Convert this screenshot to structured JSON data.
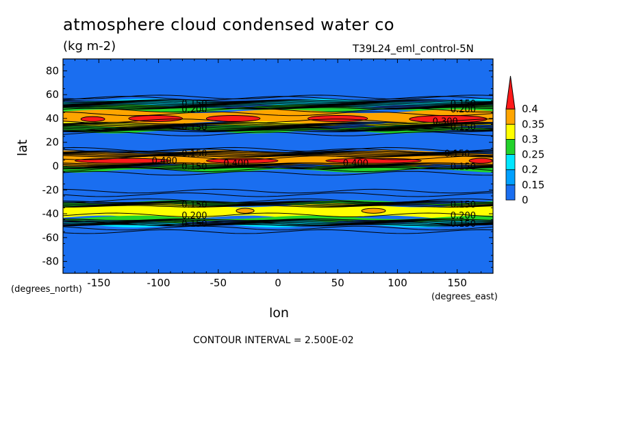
{
  "header": {
    "title": "atmosphere cloud condensed water co",
    "units": "(kg m-2)",
    "run_id": "T39L24_eml_control-5N"
  },
  "footer": {
    "contour_interval": "CONTOUR INTERVAL = 2.500E-02"
  },
  "axis_notes": {
    "x_units": "(degrees_east)",
    "y_units": "(degrees_north)"
  },
  "colors": {
    "background": "#1a6ef0",
    "contour_line": "#000000"
  },
  "chart_data": {
    "type": "heatmap",
    "title": "atmosphere cloud condensed water co",
    "xlabel": "lon",
    "ylabel": "lat",
    "xlim": [
      -180,
      180
    ],
    "ylim": [
      -90,
      90
    ],
    "x_ticks": [
      -150,
      -100,
      -50,
      0,
      50,
      100,
      150
    ],
    "y_ticks": [
      80,
      60,
      40,
      20,
      0,
      -20,
      -40,
      -60,
      -80
    ],
    "colorbar": {
      "levels": [
        0,
        0.15,
        0.2,
        0.25,
        0.3,
        0.35,
        0.4
      ],
      "labels": [
        "0",
        "0.15",
        "0.2",
        "0.25",
        "0.3",
        "0.35",
        "0.4"
      ],
      "colors": [
        "#1a6ef0",
        "#00a0ff",
        "#00e6ff",
        "#22d22a",
        "#ffff00",
        "#ffa500",
        "#ff1a1a"
      ],
      "extend": "max"
    },
    "bands": [
      {
        "lat_from": 55,
        "lat_to": 50,
        "color": "#00e6ff"
      },
      {
        "lat_from": 50,
        "lat_to": 46,
        "color": "#22d22a"
      },
      {
        "lat_from": 46,
        "lat_to": 36,
        "color": "#ffa500"
      },
      {
        "lat_from": 36,
        "lat_to": 33,
        "color": "#ffff00"
      },
      {
        "lat_from": 33,
        "lat_to": 29,
        "color": "#22d22a"
      },
      {
        "lat_from": 12,
        "lat_to": 0,
        "color": "#ffa500"
      },
      {
        "lat_from": 0,
        "lat_to": -4,
        "color": "#22d22a"
      },
      {
        "lat_from": -30,
        "lat_to": -33,
        "color": "#22d22a"
      },
      {
        "lat_from": -33,
        "lat_to": -43,
        "color": "#ffff00"
      },
      {
        "lat_from": -43,
        "lat_to": -47,
        "color": "#22d22a"
      },
      {
        "lat_from": -47,
        "lat_to": -50,
        "color": "#00e6ff"
      }
    ],
    "patches": [
      {
        "lon_from": -165,
        "lon_to": -145,
        "lat_from": 41,
        "lat_to": 38,
        "color": "#ff1a1a"
      },
      {
        "lon_from": -125,
        "lon_to": -80,
        "lat_from": 42,
        "lat_to": 38,
        "color": "#ff1a1a"
      },
      {
        "lon_from": -60,
        "lon_to": -15,
        "lat_from": 42,
        "lat_to": 38,
        "color": "#ff1a1a"
      },
      {
        "lon_from": 25,
        "lon_to": 75,
        "lat_from": 42,
        "lat_to": 38,
        "color": "#ff1a1a"
      },
      {
        "lon_from": 110,
        "lon_to": 175,
        "lat_from": 42,
        "lat_to": 37,
        "color": "#ff1a1a"
      },
      {
        "lon_from": -170,
        "lon_to": -90,
        "lat_from": 6,
        "lat_to": 3,
        "color": "#ff1a1a"
      },
      {
        "lon_from": -60,
        "lon_to": 0,
        "lat_from": 6,
        "lat_to": 3,
        "color": "#ff1a1a"
      },
      {
        "lon_from": 40,
        "lon_to": 120,
        "lat_from": 6,
        "lat_to": 3,
        "color": "#ff1a1a"
      },
      {
        "lon_from": 160,
        "lon_to": 180,
        "lat_from": 6,
        "lat_to": 3,
        "color": "#ff1a1a"
      },
      {
        "lon_from": -35,
        "lon_to": -20,
        "lat_from": -36,
        "lat_to": -39,
        "color": "#ffa500"
      },
      {
        "lon_from": 70,
        "lon_to": 90,
        "lat_from": -36,
        "lat_to": -39,
        "color": "#ffa500"
      }
    ],
    "dense_contour_bands": [
      {
        "lat_from": 55,
        "lat_to": 48
      },
      {
        "lat_from": 36,
        "lat_to": 29
      },
      {
        "lat_from": 12,
        "lat_to": 8
      },
      {
        "lat_from": 2,
        "lat_to": -2
      },
      {
        "lat_from": -30,
        "lat_to": -34
      },
      {
        "lat_from": -45,
        "lat_to": -50
      }
    ],
    "contour_lines_lat": [
      58,
      57,
      47,
      44,
      38,
      31,
      27,
      14,
      13,
      7,
      -3,
      -6,
      -21,
      -24,
      -29,
      -41,
      -48,
      -52,
      -55
    ],
    "contour_labels": [
      {
        "text": "0.150",
        "lon": -70,
        "lat": 53
      },
      {
        "text": "0.150",
        "lon": 155,
        "lat": 53
      },
      {
        "text": "0.200",
        "lon": -70,
        "lat": 48
      },
      {
        "text": "0.200",
        "lon": 155,
        "lat": 48
      },
      {
        "text": "0.300",
        "lon": 140,
        "lat": 38
      },
      {
        "text": "0.150",
        "lon": -70,
        "lat": 33
      },
      {
        "text": "0.150",
        "lon": 155,
        "lat": 33
      },
      {
        "text": "0.150",
        "lon": -70,
        "lat": 11
      },
      {
        "text": "0.150",
        "lon": 150,
        "lat": 11
      },
      {
        "text": "0.400",
        "lon": -95,
        "lat": 5
      },
      {
        "text": "0.400",
        "lon": -35,
        "lat": 3
      },
      {
        "text": "0.400",
        "lon": 65,
        "lat": 3
      },
      {
        "text": "0.150",
        "lon": -70,
        "lat": 0
      },
      {
        "text": "0.150",
        "lon": 155,
        "lat": 0
      },
      {
        "text": "0.150",
        "lon": -70,
        "lat": -32
      },
      {
        "text": "0.150",
        "lon": 155,
        "lat": -32
      },
      {
        "text": "0.200",
        "lon": -70,
        "lat": -41
      },
      {
        "text": "0.200",
        "lon": 155,
        "lat": -41
      },
      {
        "text": "0.150",
        "lon": -70,
        "lat": -48
      },
      {
        "text": "0.150",
        "lon": 155,
        "lat": -48
      }
    ]
  }
}
